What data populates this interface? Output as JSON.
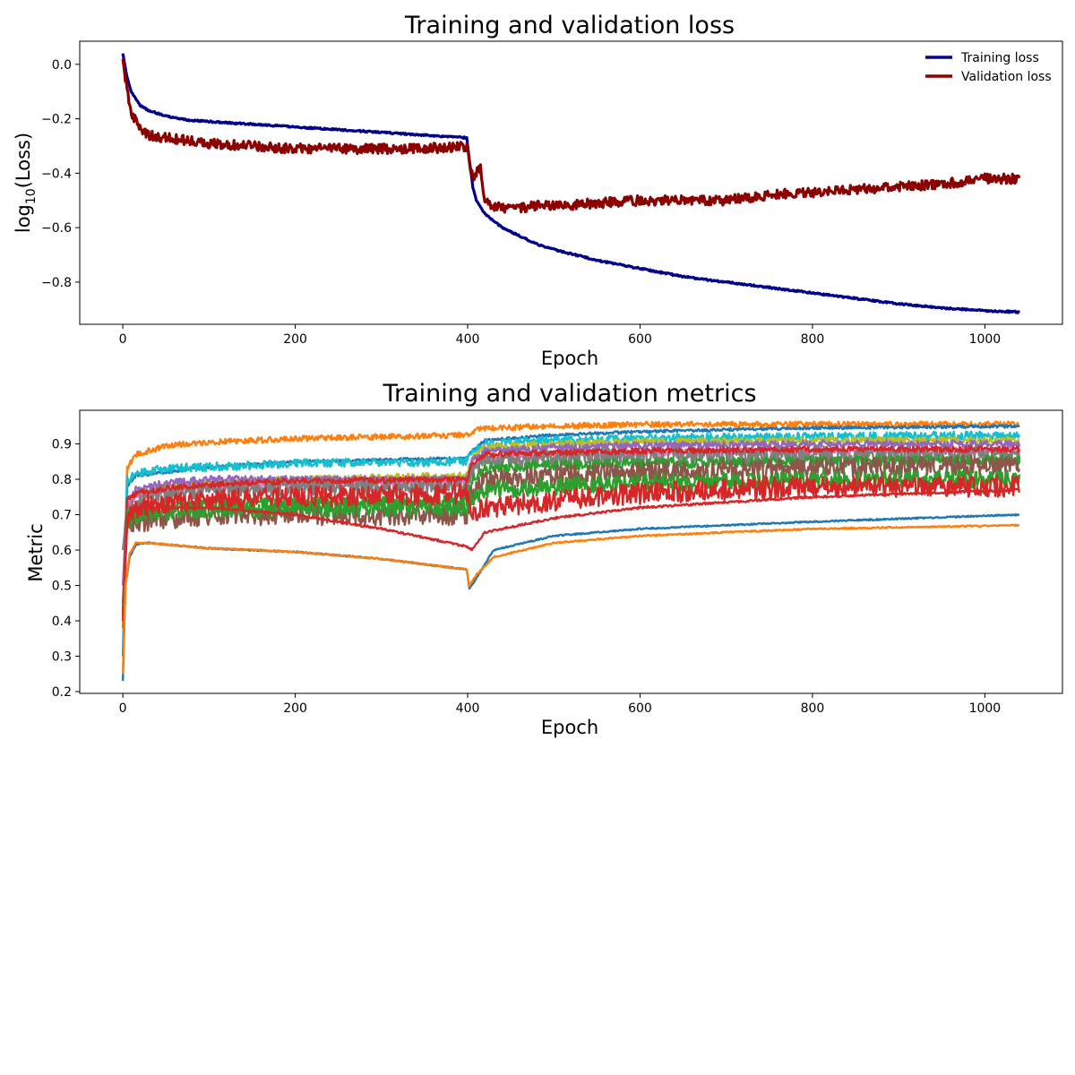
{
  "chart_data": [
    {
      "type": "line",
      "title": "Training and validation loss",
      "xlabel": "Epoch",
      "ylabel": {
        "main": "log",
        "sub": "10",
        "rest": "(Loss)"
      },
      "xlim": [
        -50,
        1090
      ],
      "ylim": [
        -0.955,
        0.085
      ],
      "xticks": [
        0,
        200,
        400,
        600,
        800,
        1000
      ],
      "xtick_labels": [
        "0",
        "200",
        "400",
        "600",
        "800",
        "1000"
      ],
      "yticks": [
        0.0,
        -0.2,
        -0.4,
        -0.6,
        -0.8
      ],
      "ytick_labels": [
        "0.0",
        "−0.2",
        "−0.4",
        "−0.6",
        "−0.8"
      ],
      "legend_position": "top-right",
      "grid": false,
      "series": [
        {
          "name": "Training loss",
          "color": "#00008b",
          "x": [
            0,
            5,
            10,
            20,
            30,
            50,
            75,
            100,
            150,
            200,
            250,
            300,
            350,
            399,
            402,
            406,
            410,
            420,
            440,
            460,
            480,
            500,
            550,
            600,
            650,
            700,
            750,
            800,
            850,
            900,
            950,
            1000,
            1040
          ],
          "y": [
            0.04,
            -0.05,
            -0.1,
            -0.15,
            -0.17,
            -0.19,
            -0.205,
            -0.21,
            -0.22,
            -0.23,
            -0.24,
            -0.25,
            -0.26,
            -0.27,
            -0.35,
            -0.45,
            -0.5,
            -0.55,
            -0.6,
            -0.63,
            -0.66,
            -0.68,
            -0.72,
            -0.75,
            -0.78,
            -0.8,
            -0.82,
            -0.84,
            -0.86,
            -0.88,
            -0.895,
            -0.905,
            -0.91
          ],
          "noise": 0.003
        },
        {
          "name": "Validation loss",
          "color": "#8b0000",
          "x": [
            0,
            5,
            10,
            20,
            30,
            50,
            75,
            100,
            150,
            200,
            250,
            300,
            350,
            399,
            402,
            406,
            410,
            415,
            420,
            430,
            450,
            480,
            500,
            550,
            600,
            650,
            700,
            750,
            800,
            850,
            900,
            950,
            1000,
            1040
          ],
          "y": [
            0.02,
            -0.1,
            -0.18,
            -0.24,
            -0.26,
            -0.27,
            -0.28,
            -0.29,
            -0.3,
            -0.31,
            -0.31,
            -0.31,
            -0.31,
            -0.3,
            -0.36,
            -0.42,
            -0.4,
            -0.38,
            -0.5,
            -0.52,
            -0.53,
            -0.52,
            -0.52,
            -0.51,
            -0.5,
            -0.5,
            -0.5,
            -0.48,
            -0.47,
            -0.46,
            -0.45,
            -0.44,
            -0.42,
            -0.42
          ],
          "noise": 0.018
        }
      ]
    },
    {
      "type": "line",
      "title": "Training and validation metrics",
      "xlabel": "Epoch",
      "ylabel": "Metric",
      "xlim": [
        -50,
        1090
      ],
      "ylim": [
        0.195,
        0.995
      ],
      "xticks": [
        0,
        200,
        400,
        600,
        800,
        1000
      ],
      "xtick_labels": [
        "0",
        "200",
        "400",
        "600",
        "800",
        "1000"
      ],
      "yticks": [
        0.2,
        0.3,
        0.4,
        0.5,
        0.6,
        0.7,
        0.8,
        0.9
      ],
      "ytick_labels": [
        "0.2",
        "0.3",
        "0.4",
        "0.5",
        "0.6",
        "0.7",
        "0.8",
        "0.9"
      ],
      "grid": false,
      "series": [
        {
          "color": "#ff7f0e",
          "x": [
            0,
            5,
            15,
            50,
            100,
            200,
            300,
            399,
            405,
            420,
            500,
            600,
            800,
            1040
          ],
          "y": [
            0.38,
            0.83,
            0.87,
            0.895,
            0.905,
            0.915,
            0.92,
            0.925,
            0.935,
            0.945,
            0.95,
            0.955,
            0.955,
            0.955
          ],
          "noise": 0.008
        },
        {
          "color": "#1f77b4",
          "x": [
            0,
            5,
            15,
            50,
            100,
            200,
            399,
            405,
            420,
            500,
            600,
            800,
            1040
          ],
          "y": [
            0.3,
            0.78,
            0.81,
            0.82,
            0.835,
            0.85,
            0.86,
            0.88,
            0.91,
            0.925,
            0.935,
            0.945,
            0.95
          ],
          "noise": 0.004
        },
        {
          "color": "#17becf",
          "x": [
            0,
            5,
            15,
            50,
            100,
            200,
            399,
            405,
            420,
            500,
            600,
            800,
            1040
          ],
          "y": [
            0.4,
            0.8,
            0.815,
            0.83,
            0.835,
            0.845,
            0.85,
            0.88,
            0.9,
            0.91,
            0.915,
            0.92,
            0.925
          ],
          "noise": 0.012
        },
        {
          "color": "#bcbd22",
          "x": [
            0,
            5,
            15,
            50,
            100,
            200,
            399,
            405,
            420,
            500,
            600,
            800,
            1040
          ],
          "y": [
            0.45,
            0.72,
            0.76,
            0.78,
            0.79,
            0.8,
            0.81,
            0.86,
            0.89,
            0.9,
            0.905,
            0.91,
            0.91
          ],
          "noise": 0.01
        },
        {
          "color": "#9467bd",
          "x": [
            0,
            5,
            15,
            50,
            100,
            200,
            399,
            405,
            420,
            500,
            600,
            800,
            1040
          ],
          "y": [
            0.5,
            0.74,
            0.77,
            0.79,
            0.8,
            0.8,
            0.8,
            0.85,
            0.88,
            0.89,
            0.895,
            0.9,
            0.9
          ],
          "noise": 0.01
        },
        {
          "color": "#e377c2",
          "x": [
            0,
            5,
            15,
            50,
            100,
            200,
            399,
            405,
            420,
            500,
            600,
            800,
            1040
          ],
          "y": [
            0.45,
            0.72,
            0.75,
            0.77,
            0.78,
            0.79,
            0.79,
            0.83,
            0.86,
            0.87,
            0.875,
            0.88,
            0.88
          ],
          "noise": 0.01
        },
        {
          "color": "#7f7f7f",
          "x": [
            0,
            5,
            15,
            50,
            100,
            200,
            399,
            405,
            420,
            500,
            600,
            800,
            1040
          ],
          "y": [
            0.6,
            0.72,
            0.74,
            0.76,
            0.77,
            0.78,
            0.78,
            0.82,
            0.85,
            0.86,
            0.865,
            0.87,
            0.87
          ],
          "noise": 0.025
        },
        {
          "color": "#d62728",
          "x": [
            0,
            5,
            15,
            50,
            100,
            200,
            399,
            405,
            420,
            500,
            600,
            800,
            1040
          ],
          "y": [
            0.42,
            0.74,
            0.76,
            0.775,
            0.785,
            0.795,
            0.8,
            0.84,
            0.87,
            0.875,
            0.88,
            0.885,
            0.885
          ],
          "noise": 0.008
        },
        {
          "color": "#2ca02c",
          "x": [
            0,
            5,
            15,
            50,
            100,
            200,
            399,
            405,
            420,
            500,
            600,
            800,
            1040
          ],
          "y": [
            0.42,
            0.7,
            0.71,
            0.72,
            0.73,
            0.735,
            0.74,
            0.8,
            0.83,
            0.84,
            0.845,
            0.85,
            0.855
          ],
          "noise": 0.015
        },
        {
          "color": "#8c564b",
          "x": [
            0,
            5,
            15,
            50,
            100,
            200,
            399,
            405,
            420,
            500,
            600,
            800,
            1040
          ],
          "y": [
            0.45,
            0.66,
            0.68,
            0.69,
            0.7,
            0.7,
            0.7,
            0.76,
            0.8,
            0.81,
            0.82,
            0.83,
            0.84
          ],
          "noise": 0.03
        },
        {
          "color": "#2ca02c",
          "x": [
            0,
            5,
            15,
            50,
            100,
            200,
            399,
            405,
            420,
            500,
            600,
            800,
            1040
          ],
          "y": [
            0.42,
            0.68,
            0.7,
            0.71,
            0.715,
            0.72,
            0.72,
            0.74,
            0.77,
            0.78,
            0.79,
            0.8,
            0.8
          ],
          "noise": 0.025
        },
        {
          "color": "#d62728",
          "x": [
            0,
            5,
            15,
            50,
            100,
            200,
            399,
            405,
            420,
            500,
            600,
            800,
            1040
          ],
          "y": [
            0.4,
            0.7,
            0.72,
            0.73,
            0.74,
            0.75,
            0.76,
            0.7,
            0.72,
            0.74,
            0.76,
            0.78,
            0.78
          ],
          "noise": 0.03
        },
        {
          "color": "#d62728",
          "x": [
            0,
            5,
            15,
            50,
            100,
            200,
            300,
            399,
            405,
            420,
            500,
            600,
            800,
            1040
          ],
          "y": [
            0.4,
            0.7,
            0.72,
            0.72,
            0.72,
            0.7,
            0.66,
            0.61,
            0.6,
            0.65,
            0.69,
            0.72,
            0.75,
            0.77
          ],
          "noise": 0.003
        },
        {
          "color": "#1f77b4",
          "x": [
            0,
            3,
            8,
            15,
            30,
            100,
            200,
            300,
            399,
            402,
            410,
            430,
            500,
            600,
            800,
            1040
          ],
          "y": [
            0.23,
            0.5,
            0.58,
            0.615,
            0.62,
            0.605,
            0.595,
            0.575,
            0.545,
            0.49,
            0.52,
            0.6,
            0.64,
            0.66,
            0.68,
            0.7
          ],
          "noise": 0.002
        },
        {
          "color": "#ff7f0e",
          "x": [
            0,
            3,
            8,
            15,
            30,
            100,
            200,
            300,
            399,
            402,
            410,
            430,
            500,
            600,
            800,
            1040
          ],
          "y": [
            0.25,
            0.5,
            0.59,
            0.62,
            0.62,
            0.605,
            0.595,
            0.575,
            0.545,
            0.5,
            0.53,
            0.58,
            0.62,
            0.64,
            0.66,
            0.67
          ],
          "noise": 0.002
        }
      ]
    }
  ]
}
